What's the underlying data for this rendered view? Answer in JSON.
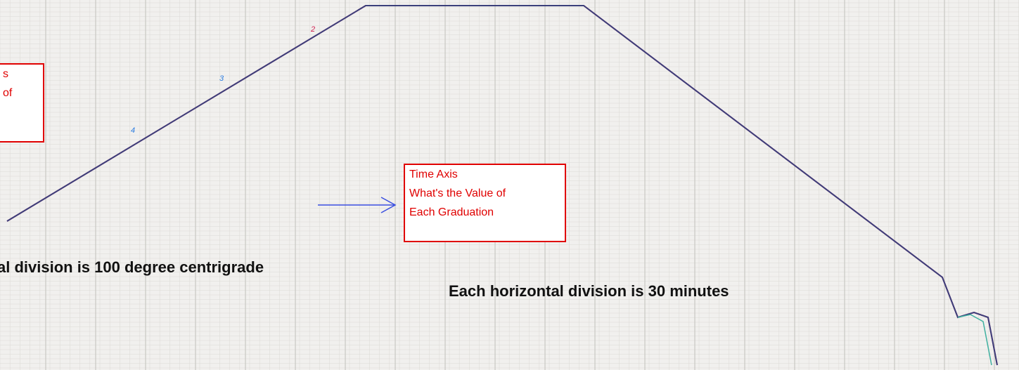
{
  "left_box": {
    "lines": [
      "s",
      "of"
    ]
  },
  "time_box": {
    "lines": [
      "Time Axis",
      "What's the Value of",
      "Each Graduation"
    ]
  },
  "vertical_note": "al division is 100 degree centrigrade",
  "horizontal_note": "Each horizontal division is 30 minutes",
  "curve_labels": [
    "4",
    "3",
    "2"
  ]
}
